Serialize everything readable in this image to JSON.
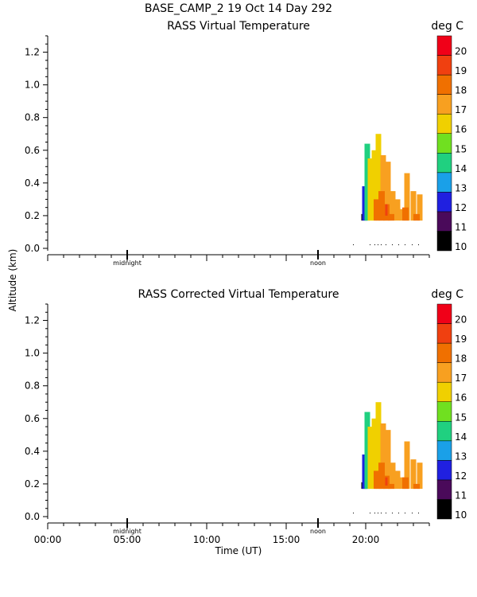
{
  "header": {
    "title": "BASE_CAMP_2  19 Oct 14 Day 292"
  },
  "colors": {
    "background": "#ffffff",
    "axis": "#000000"
  },
  "chart_data": [
    {
      "type": "heatmap",
      "title": "RASS Virtual Temperature",
      "ylabel": "Altitude (km)",
      "xlabel": "",
      "ylim": [
        0.0,
        1.3
      ],
      "xlim": [
        0,
        24
      ],
      "y_ticks": [
        "0.0",
        "0.2",
        "0.4",
        "0.6",
        "0.8",
        "1.0",
        "1.2"
      ],
      "x_markers": [
        {
          "x": 5,
          "label": "midnight"
        },
        {
          "x": 17,
          "label": "noon"
        }
      ],
      "x_tick_labels": [],
      "colorbar": {
        "unit": "deg C",
        "levels": [
          10,
          11,
          12,
          13,
          14,
          15,
          16,
          17,
          18,
          19,
          20
        ],
        "colors": [
          "#000000",
          "#4a0a5a",
          "#2020e0",
          "#1aa0e8",
          "#20d080",
          "#70e020",
          "#f0d000",
          "#f8a020",
          "#f07000",
          "#f04010",
          "#f00018"
        ]
      },
      "profiles": [
        {
          "t": 19.9,
          "base": 0.17,
          "top": 0.21,
          "value": 10.5
        },
        {
          "t": 19.95,
          "base": 0.17,
          "top": 0.38,
          "value": 12.5
        },
        {
          "t": 20.1,
          "base": 0.17,
          "top": 0.64,
          "value": 14.5
        },
        {
          "t": 20.3,
          "base": 0.17,
          "top": 0.55,
          "value": 16.5
        },
        {
          "t": 20.55,
          "base": 0.17,
          "top": 0.6,
          "value": 16.5
        },
        {
          "t": 20.8,
          "base": 0.17,
          "top": 0.7,
          "value": 16.5
        },
        {
          "t": 21.1,
          "base": 0.17,
          "top": 0.57,
          "value": 17.5
        },
        {
          "t": 21.4,
          "base": 0.17,
          "top": 0.53,
          "value": 17.5
        },
        {
          "t": 21.7,
          "base": 0.17,
          "top": 0.35,
          "value": 17.5
        },
        {
          "t": 22.0,
          "base": 0.17,
          "top": 0.3,
          "value": 17.5
        },
        {
          "t": 22.3,
          "base": 0.17,
          "top": 0.24,
          "value": 17.5
        },
        {
          "t": 22.6,
          "base": 0.17,
          "top": 0.46,
          "value": 17.5
        },
        {
          "t": 23.0,
          "base": 0.17,
          "top": 0.35,
          "value": 17.5
        },
        {
          "t": 23.4,
          "base": 0.17,
          "top": 0.33,
          "value": 17.5
        }
      ],
      "warm_core": [
        {
          "t": 20.7,
          "base": 0.17,
          "top": 0.3,
          "value": 18.5
        },
        {
          "t": 21.0,
          "base": 0.17,
          "top": 0.35,
          "value": 18.5
        },
        {
          "t": 21.3,
          "base": 0.17,
          "top": 0.27,
          "value": 18.5
        },
        {
          "t": 21.6,
          "base": 0.17,
          "top": 0.21,
          "value": 18.5
        },
        {
          "t": 22.5,
          "base": 0.17,
          "top": 0.25,
          "value": 18.5
        },
        {
          "t": 23.2,
          "base": 0.17,
          "top": 0.21,
          "value": 18.5
        }
      ],
      "hot_spot": {
        "t": 21.3,
        "base": 0.2,
        "top": 0.27,
        "value": 19.5
      },
      "no_data_dots": [
        19.2,
        20.25,
        20.55,
        20.75,
        20.95,
        21.25,
        21.65,
        22.05,
        22.45,
        22.9,
        23.3
      ]
    },
    {
      "type": "heatmap",
      "title": "RASS Corrected Virtual Temperature",
      "ylabel": "",
      "xlabel": "Time (UT)",
      "ylim": [
        0.0,
        1.3
      ],
      "xlim": [
        0,
        24
      ],
      "y_ticks": [
        "0.0",
        "0.2",
        "0.4",
        "0.6",
        "0.8",
        "1.0",
        "1.2"
      ],
      "x_markers": [
        {
          "x": 5,
          "label": "midnight"
        },
        {
          "x": 17,
          "label": "noon"
        }
      ],
      "x_tick_labels": [
        "00:00",
        "05:00",
        "10:00",
        "15:00",
        "20:00"
      ],
      "colorbar": {
        "unit": "deg C",
        "levels": [
          10,
          11,
          12,
          13,
          14,
          15,
          16,
          17,
          18,
          19,
          20
        ],
        "colors": [
          "#000000",
          "#4a0a5a",
          "#2020e0",
          "#1aa0e8",
          "#20d080",
          "#70e020",
          "#f0d000",
          "#f8a020",
          "#f07000",
          "#f04010",
          "#f00018"
        ]
      },
      "profiles": [
        {
          "t": 19.9,
          "base": 0.17,
          "top": 0.21,
          "value": 10.5
        },
        {
          "t": 19.95,
          "base": 0.17,
          "top": 0.38,
          "value": 12.5
        },
        {
          "t": 20.1,
          "base": 0.17,
          "top": 0.64,
          "value": 14.5
        },
        {
          "t": 20.3,
          "base": 0.17,
          "top": 0.55,
          "value": 16.5
        },
        {
          "t": 20.55,
          "base": 0.17,
          "top": 0.6,
          "value": 16.5
        },
        {
          "t": 20.8,
          "base": 0.17,
          "top": 0.7,
          "value": 16.5
        },
        {
          "t": 21.1,
          "base": 0.17,
          "top": 0.57,
          "value": 17.5
        },
        {
          "t": 21.4,
          "base": 0.17,
          "top": 0.53,
          "value": 17.5
        },
        {
          "t": 21.7,
          "base": 0.17,
          "top": 0.33,
          "value": 17.5
        },
        {
          "t": 22.0,
          "base": 0.17,
          "top": 0.28,
          "value": 17.5
        },
        {
          "t": 22.3,
          "base": 0.17,
          "top": 0.24,
          "value": 17.5
        },
        {
          "t": 22.6,
          "base": 0.17,
          "top": 0.46,
          "value": 17.5
        },
        {
          "t": 23.0,
          "base": 0.17,
          "top": 0.35,
          "value": 17.5
        },
        {
          "t": 23.4,
          "base": 0.17,
          "top": 0.33,
          "value": 17.5
        }
      ],
      "warm_core": [
        {
          "t": 20.7,
          "base": 0.17,
          "top": 0.28,
          "value": 18.5
        },
        {
          "t": 21.0,
          "base": 0.17,
          "top": 0.33,
          "value": 18.5
        },
        {
          "t": 21.3,
          "base": 0.17,
          "top": 0.25,
          "value": 18.5
        },
        {
          "t": 21.6,
          "base": 0.17,
          "top": 0.2,
          "value": 18.5
        },
        {
          "t": 22.5,
          "base": 0.17,
          "top": 0.24,
          "value": 18.5
        },
        {
          "t": 23.2,
          "base": 0.17,
          "top": 0.2,
          "value": 18.5
        }
      ],
      "hot_spot": {
        "t": 21.3,
        "base": 0.19,
        "top": 0.24,
        "value": 19.5
      },
      "no_data_dots": [
        19.2,
        20.25,
        20.55,
        20.75,
        20.95,
        21.25,
        21.65,
        22.05,
        22.45,
        22.9,
        23.3
      ]
    }
  ]
}
